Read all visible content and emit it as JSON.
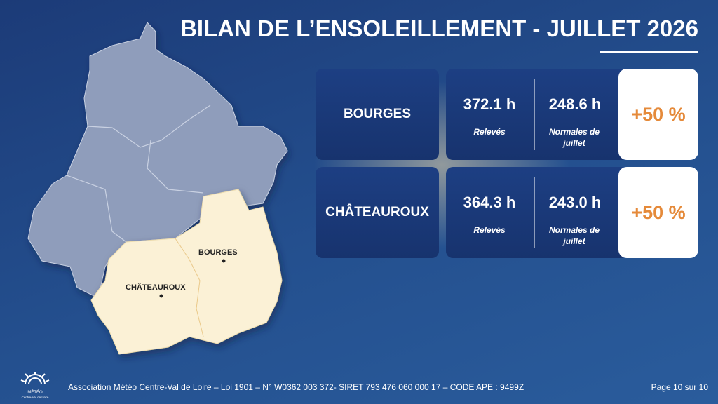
{
  "header": {
    "title": "BILAN DE L’ENSOLEILLEMENT - JUILLET 2026"
  },
  "rows": [
    {
      "city": "BOURGES",
      "measured": "372.1 h",
      "measured_label": "Relevés",
      "normal": "248.6 h",
      "normal_label": "Normales de juillet",
      "delta": "+50 %"
    },
    {
      "city": "CHÂTEAUROUX",
      "measured": "364.3 h",
      "measured_label": "Relevés",
      "normal": "243.0 h",
      "normal_label": "Normales de juillet",
      "delta": "+50 %"
    }
  ],
  "map": {
    "labels": [
      "BOURGES",
      "CHÂTEAUROUX"
    ]
  },
  "logo": {
    "name": "MÉTÉO",
    "region": "Centre-Val de Loire"
  },
  "footer": {
    "text": "Association Météo Centre-Val de Loire – Loi 1901 – N° W0362 003 372- SIRET 793 476 060 000 17 – CODE APE : 9499Z",
    "page": "Page 10 sur 10"
  }
}
